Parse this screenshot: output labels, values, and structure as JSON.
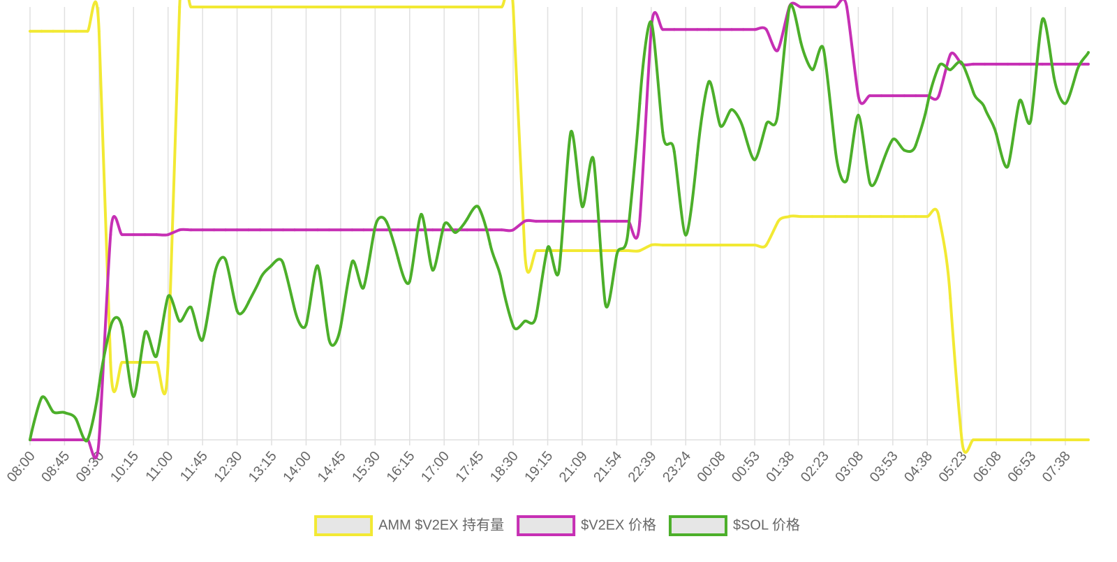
{
  "chart_data": {
    "type": "line",
    "categories": [
      "08:00",
      null,
      null,
      "08:45",
      null,
      null,
      "09:30",
      null,
      null,
      "10:15",
      null,
      null,
      "11:00",
      null,
      null,
      "11:45",
      null,
      null,
      "12:30",
      null,
      null,
      "13:15",
      null,
      null,
      "14:00",
      null,
      null,
      "14:45",
      null,
      null,
      "15:30",
      null,
      null,
      "16:15",
      null,
      null,
      "17:00",
      null,
      null,
      "17:45",
      null,
      null,
      "18:30",
      null,
      null,
      "19:15",
      null,
      null,
      "21:09",
      null,
      null,
      "21:54",
      null,
      null,
      "22:39",
      null,
      null,
      "23:24",
      null,
      null,
      "00:08",
      null,
      null,
      "00:53",
      null,
      null,
      "01:38",
      null,
      null,
      "02:23",
      null,
      null,
      "03:08",
      null,
      null,
      "03:53",
      null,
      null,
      "04:38",
      null,
      null,
      "05:23",
      null,
      null,
      "06:08",
      null,
      null,
      "06:53",
      null,
      null,
      "07:38",
      null,
      null
    ],
    "series": [
      {
        "name": "AMM $V2EX 持有量",
        "color": "#f2e933",
        "values": [
          94.4,
          94.4,
          94.4,
          94.4,
          94.4,
          94.4,
          94.4,
          17.9,
          17.9,
          17.9,
          17.9,
          17.9,
          17.9,
          100,
          100,
          100,
          100,
          100,
          100,
          100,
          100,
          100,
          100,
          100,
          100,
          100,
          100,
          100,
          100,
          100,
          100,
          100,
          100,
          100,
          100,
          100,
          100,
          100,
          100,
          100,
          100,
          100,
          100,
          43.7,
          43.7,
          43.7,
          43.7,
          43.7,
          43.7,
          43.7,
          43.7,
          43.7,
          43.7,
          43.7,
          45,
          45,
          45,
          45,
          45,
          45,
          45,
          45,
          45,
          45,
          45,
          50.3,
          51.6,
          51.6,
          51.6,
          51.6,
          51.6,
          51.6,
          51.6,
          51.6,
          51.6,
          51.6,
          51.6,
          51.6,
          51.6,
          51.6,
          32.7,
          0,
          0,
          0,
          0,
          0,
          0,
          0,
          0,
          0,
          0,
          0,
          0
        ]
      },
      {
        "name": "$V2EX 价格",
        "color": "#c62fb4",
        "values": [
          0,
          0,
          0,
          0,
          0,
          0,
          0,
          47.4,
          47.4,
          47.4,
          47.4,
          47.4,
          47.4,
          48.5,
          48.5,
          48.5,
          48.5,
          48.5,
          48.5,
          48.5,
          48.5,
          48.5,
          48.5,
          48.5,
          48.5,
          48.5,
          48.5,
          48.5,
          48.5,
          48.5,
          48.5,
          48.5,
          48.5,
          48.5,
          48.5,
          48.5,
          48.5,
          48.5,
          48.5,
          48.5,
          48.5,
          48.5,
          48.5,
          50.5,
          50.5,
          50.5,
          50.5,
          50.5,
          50.5,
          50.5,
          50.5,
          50.5,
          50.5,
          50.5,
          94.8,
          94.8,
          94.8,
          94.8,
          94.8,
          94.8,
          94.8,
          94.8,
          94.8,
          94.8,
          94.8,
          90,
          100,
          100,
          100,
          100,
          100,
          100,
          79.5,
          79.5,
          79.5,
          79.5,
          79.5,
          79.5,
          79.5,
          79.5,
          89,
          86.8,
          86.8,
          86.8,
          86.8,
          86.8,
          86.8,
          86.8,
          86.8,
          86.8,
          86.8,
          86.8,
          86.8
        ]
      },
      {
        "name": "$SOL 价格",
        "color": "#4caf2a",
        "values": [
          0,
          9.7,
          6.5,
          6.3,
          4.8,
          0,
          12.4,
          26.1,
          26,
          10,
          24.8,
          19.4,
          33.1,
          27.4,
          30.6,
          23.1,
          37.7,
          41.6,
          29.8,
          31.8,
          37.1,
          40.3,
          40.8,
          30.2,
          26.6,
          40.2,
          23.1,
          26.1,
          41.1,
          35.2,
          49.2,
          50.3,
          41.9,
          36.6,
          52.1,
          39.2,
          49.7,
          47.9,
          51,
          53.7,
          45.2,
          36.6,
          26.3,
          27.4,
          28.7,
          44.4,
          39.4,
          71,
          53.9,
          64.5,
          31.6,
          42.7,
          48.4,
          77.7,
          96.5,
          71,
          66.6,
          47.3,
          65.8,
          82.7,
          72.6,
          76.3,
          71.9,
          64.7,
          72.9,
          75.3,
          99.7,
          91.9,
          85.5,
          90,
          67.1,
          60,
          75,
          59.4,
          63.2,
          69.4,
          66.9,
          68.1,
          77.4,
          86.3,
          85.5,
          87.1,
          80.3,
          76.6,
          70.6,
          63.2,
          78.2,
          73.9,
          97.1,
          83.9,
          77.7,
          85.2,
          89.5
        ]
      }
    ],
    "ylim": [
      0,
      100
    ],
    "grid": true,
    "legend": "bottom"
  }
}
